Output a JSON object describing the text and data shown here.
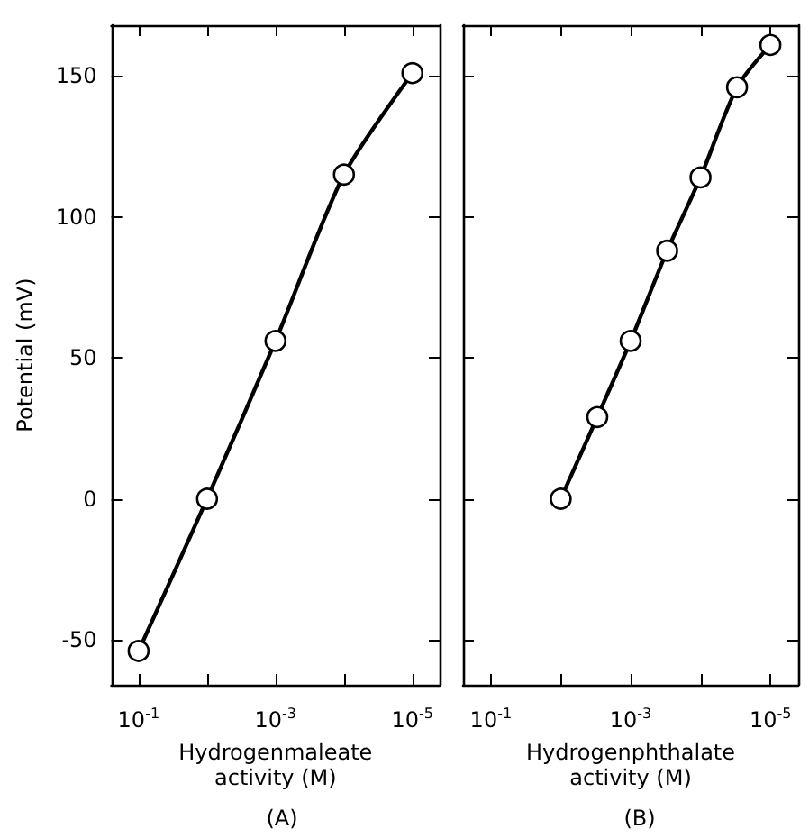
{
  "chart_data": [
    {
      "type": "line",
      "title": "(A)",
      "xlabel": "Hydrogenmaleate activity (M)",
      "ylabel": "Potential (mV)",
      "x": [
        0.1,
        0.01,
        0.001,
        0.0001,
        1e-05
      ],
      "values": [
        -54,
        0,
        56,
        115,
        151
      ],
      "color": "#000000",
      "marker": "circle",
      "log": "x",
      "grid": false,
      "xlim": [
        0.25,
        4e-06
      ],
      "xticks": [
        {
          "value": 0.1,
          "label": "10$^{-1}$"
        },
        {
          "value": 0.01,
          "label": null
        },
        {
          "value": 0.001,
          "label": "10$^{-3}$"
        },
        {
          "value": 0.0001,
          "label": null
        },
        {
          "value": 1e-05,
          "label": "10$^{-5}$"
        }
      ],
      "ylim": [
        -66,
        168
      ],
      "yticks": [
        -50,
        0,
        50,
        100,
        150
      ]
    },
    {
      "type": "line",
      "title": "(B)",
      "xlabel": "Hydrogenphthalate activity (M)",
      "x": [
        0.01,
        0.003,
        0.001,
        0.0003,
        0.0001,
        3e-05,
        1e-05
      ],
      "values": [
        0,
        29,
        56,
        88,
        114,
        146,
        161
      ],
      "color": "#000000",
      "marker": "circle",
      "log": "x",
      "grid": false,
      "tick_labels": "x",
      "xlim": [
        0.25,
        4e-06
      ],
      "xticks": [
        {
          "value": 0.1,
          "label": "10$^{-1}$"
        },
        {
          "value": 0.01,
          "label": null
        },
        {
          "value": 0.001,
          "label": "10$^{-3}$"
        },
        {
          "value": 0.0001,
          "label": null
        },
        {
          "value": 1e-05,
          "label": "10$^{-5}$"
        }
      ],
      "ylim": [
        -66,
        168
      ],
      "yticks": [
        -50,
        0,
        50,
        100,
        150
      ]
    }
  ]
}
